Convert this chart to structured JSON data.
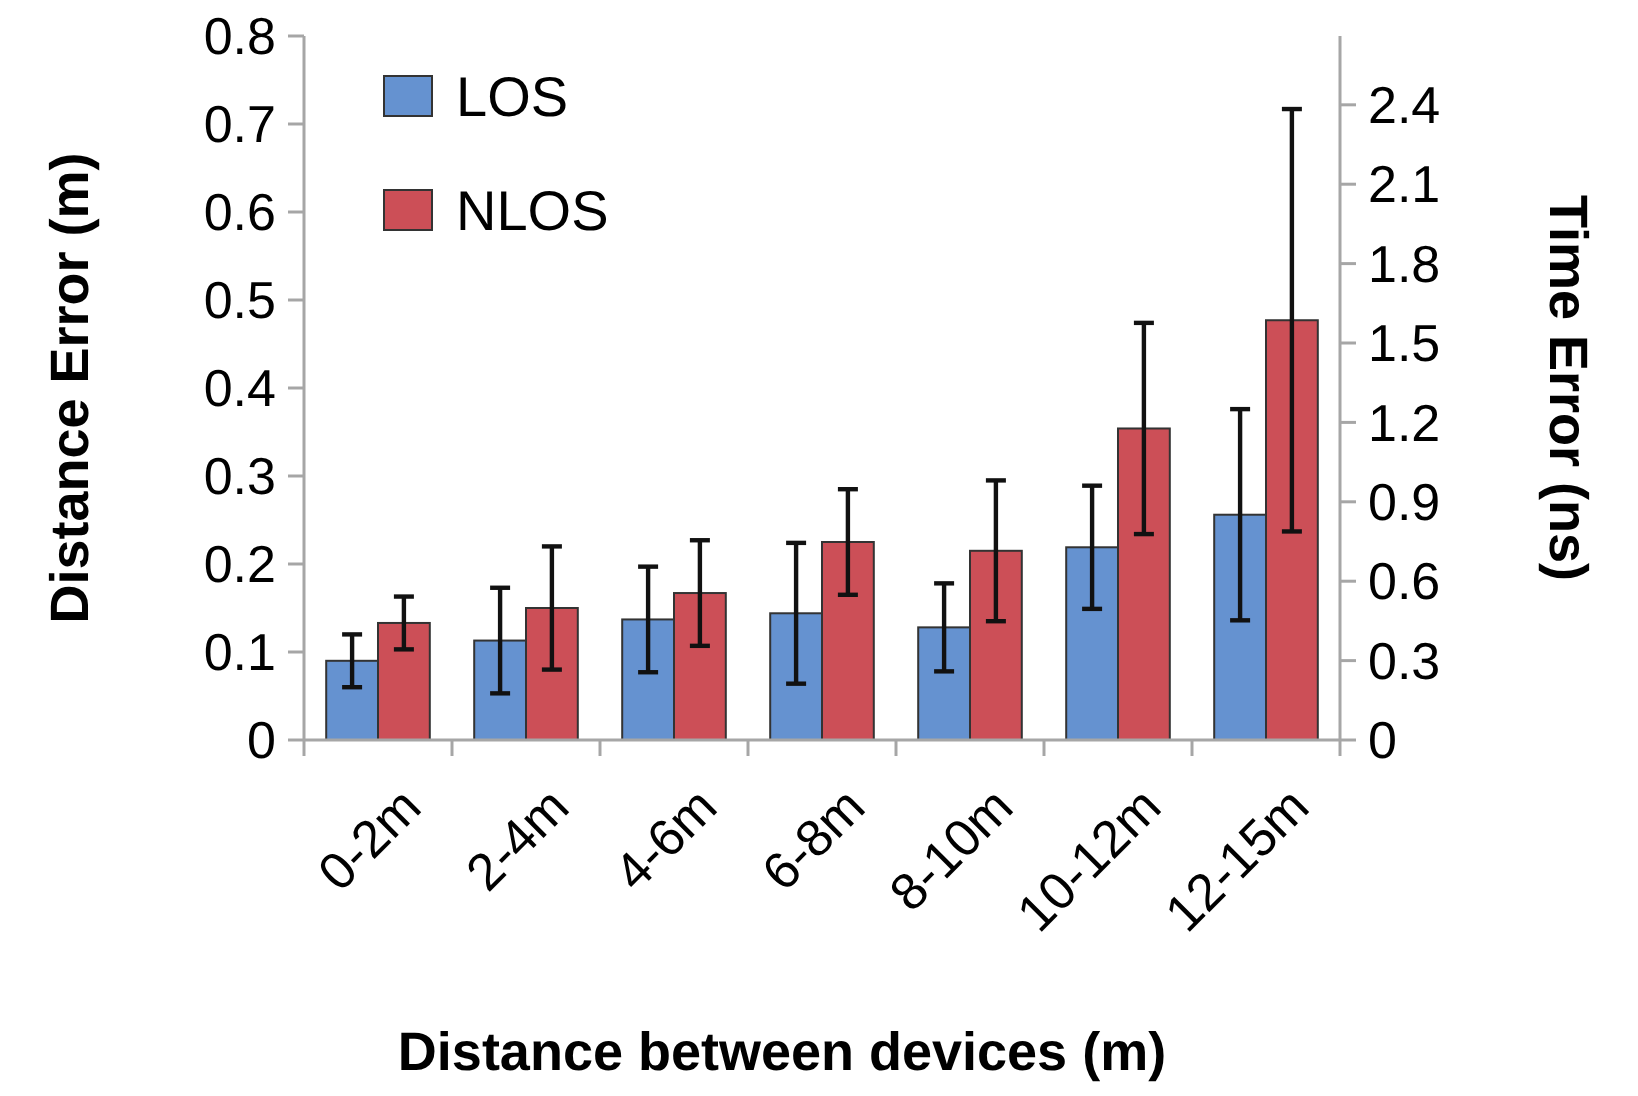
{
  "chart_data": {
    "type": "bar",
    "xlabel": "Distance between devices (m)",
    "ylabel": "Distance Error (m)",
    "y2label": "Time Error (ns)",
    "categories": [
      "0-2m",
      "2-4m",
      "4-6m",
      "6-8m",
      "8-10m",
      "10-12m",
      "12-15m"
    ],
    "series": [
      {
        "name": "LOS",
        "color": "#6592d0",
        "values": [
          0.09,
          0.113,
          0.137,
          0.144,
          0.128,
          0.219,
          0.256
        ],
        "errors": [
          0.03,
          0.06,
          0.06,
          0.08,
          0.05,
          0.07,
          0.12
        ]
      },
      {
        "name": "NLOS",
        "color": "#cc4f57",
        "values": [
          0.133,
          0.15,
          0.167,
          0.225,
          0.215,
          0.354,
          0.477
        ],
        "errors": [
          0.03,
          0.07,
          0.06,
          0.06,
          0.08,
          0.12,
          0.24
        ]
      }
    ],
    "ylim": [
      0,
      0.8
    ],
    "yticks": [
      0,
      0.1,
      0.2,
      0.3,
      0.4,
      0.5,
      0.6,
      0.7,
      0.8
    ],
    "y2lim": [
      0,
      2.66
    ],
    "y2ticks": [
      0,
      0.3,
      0.6,
      0.9,
      1.2,
      1.5,
      1.8,
      2.1,
      2.4
    ],
    "grid": false,
    "legend": "top left"
  }
}
